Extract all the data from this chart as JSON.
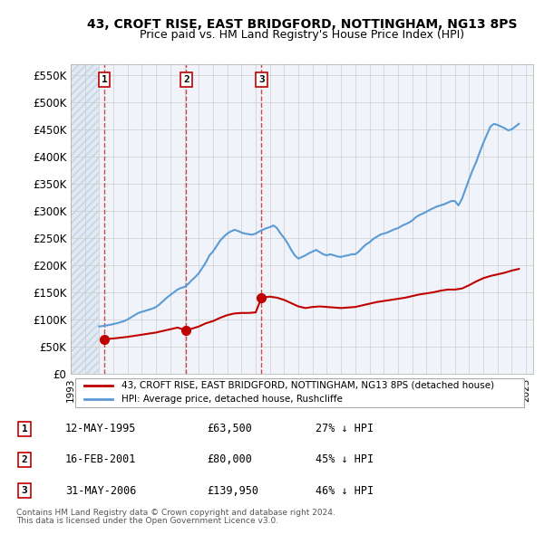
{
  "title": "43, CROFT RISE, EAST BRIDGFORD, NOTTINGHAM, NG13 8PS",
  "subtitle": "Price paid vs. HM Land Registry's House Price Index (HPI)",
  "ylabel_ticks": [
    "£0",
    "£50K",
    "£100K",
    "£150K",
    "£200K",
    "£250K",
    "£300K",
    "£350K",
    "£400K",
    "£450K",
    "£500K",
    "£550K"
  ],
  "ytick_values": [
    0,
    50000,
    100000,
    150000,
    200000,
    250000,
    300000,
    350000,
    400000,
    450000,
    500000,
    550000
  ],
  "xlim": [
    1993.0,
    2025.5
  ],
  "ylim": [
    0,
    570000
  ],
  "transactions": [
    {
      "num": 1,
      "date": "12-MAY-1995",
      "year": 1995.37,
      "price": 63500,
      "pct": "27%",
      "dir": "↓"
    },
    {
      "num": 2,
      "date": "16-FEB-2001",
      "year": 2001.12,
      "price": 80000,
      "pct": "45%",
      "dir": "↓"
    },
    {
      "num": 3,
      "date": "31-MAY-2006",
      "year": 2006.41,
      "price": 139950,
      "pct": "46%",
      "dir": "↓"
    }
  ],
  "hpi_line_color": "#5b9bd5",
  "price_line_color": "#c00000",
  "transaction_marker_color": "#c00000",
  "hatch_color": "#d0d8e8",
  "grid_color": "#cccccc",
  "bg_color": "#f0f4fa",
  "legend_entries": [
    "43, CROFT RISE, EAST BRIDGFORD, NOTTINGHAM, NG13 8PS (detached house)",
    "HPI: Average price, detached house, Rushcliffe"
  ],
  "footer1": "Contains HM Land Registry data © Crown copyright and database right 2024.",
  "footer2": "This data is licensed under the Open Government Licence v3.0.",
  "hpi_data_x": [
    1995.0,
    1995.25,
    1995.5,
    1995.75,
    1996.0,
    1996.25,
    1996.5,
    1996.75,
    1997.0,
    1997.25,
    1997.5,
    1997.75,
    1998.0,
    1998.25,
    1998.5,
    1998.75,
    1999.0,
    1999.25,
    1999.5,
    1999.75,
    2000.0,
    2000.25,
    2000.5,
    2000.75,
    2001.0,
    2001.25,
    2001.5,
    2001.75,
    2002.0,
    2002.25,
    2002.5,
    2002.75,
    2003.0,
    2003.25,
    2003.5,
    2003.75,
    2004.0,
    2004.25,
    2004.5,
    2004.75,
    2005.0,
    2005.25,
    2005.5,
    2005.75,
    2006.0,
    2006.25,
    2006.5,
    2006.75,
    2007.0,
    2007.25,
    2007.5,
    2007.75,
    2008.0,
    2008.25,
    2008.5,
    2008.75,
    2009.0,
    2009.25,
    2009.5,
    2009.75,
    2010.0,
    2010.25,
    2010.5,
    2010.75,
    2011.0,
    2011.25,
    2011.5,
    2011.75,
    2012.0,
    2012.25,
    2012.5,
    2012.75,
    2013.0,
    2013.25,
    2013.5,
    2013.75,
    2014.0,
    2014.25,
    2014.5,
    2014.75,
    2015.0,
    2015.25,
    2015.5,
    2015.75,
    2016.0,
    2016.25,
    2016.5,
    2016.75,
    2017.0,
    2017.25,
    2017.5,
    2017.75,
    2018.0,
    2018.25,
    2018.5,
    2018.75,
    2019.0,
    2019.25,
    2019.5,
    2019.75,
    2020.0,
    2020.25,
    2020.5,
    2020.75,
    2021.0,
    2021.25,
    2021.5,
    2021.75,
    2022.0,
    2022.25,
    2022.5,
    2022.75,
    2023.0,
    2023.25,
    2023.5,
    2023.75,
    2024.0,
    2024.25,
    2024.5
  ],
  "hpi_data_y": [
    87000,
    88000,
    89000,
    90000,
    91500,
    93000,
    95000,
    97000,
    100000,
    104000,
    108000,
    112000,
    114000,
    116000,
    118000,
    120000,
    123000,
    128000,
    134000,
    140000,
    145000,
    150000,
    155000,
    158000,
    160000,
    165000,
    172000,
    178000,
    185000,
    195000,
    205000,
    218000,
    225000,
    235000,
    245000,
    252000,
    258000,
    262000,
    265000,
    263000,
    260000,
    258000,
    257000,
    256000,
    258000,
    262000,
    265000,
    268000,
    270000,
    273000,
    268000,
    258000,
    250000,
    240000,
    228000,
    218000,
    212000,
    215000,
    218000,
    222000,
    225000,
    228000,
    224000,
    220000,
    218000,
    220000,
    218000,
    216000,
    215000,
    217000,
    218000,
    220000,
    220000,
    225000,
    232000,
    238000,
    242000,
    248000,
    252000,
    256000,
    258000,
    260000,
    263000,
    266000,
    268000,
    272000,
    275000,
    278000,
    282000,
    288000,
    292000,
    295000,
    298000,
    302000,
    305000,
    308000,
    310000,
    312000,
    315000,
    318000,
    318000,
    310000,
    322000,
    340000,
    358000,
    375000,
    390000,
    408000,
    425000,
    440000,
    455000,
    460000,
    458000,
    455000,
    452000,
    448000,
    450000,
    455000,
    460000
  ],
  "price_data_x": [
    1995.37,
    1995.5,
    1996.0,
    1996.5,
    1997.0,
    1997.5,
    1998.0,
    1998.5,
    1999.0,
    1999.5,
    2000.0,
    2000.5,
    2001.12,
    2001.5,
    2002.0,
    2002.5,
    2003.0,
    2003.5,
    2004.0,
    2004.5,
    2005.0,
    2005.5,
    2006.0,
    2006.41,
    2007.0,
    2007.5,
    2008.0,
    2008.5,
    2009.0,
    2009.5,
    2010.0,
    2010.5,
    2011.0,
    2011.5,
    2012.0,
    2012.5,
    2013.0,
    2013.5,
    2014.0,
    2014.5,
    2015.0,
    2015.5,
    2016.0,
    2016.5,
    2017.0,
    2017.5,
    2018.0,
    2018.5,
    2019.0,
    2019.5,
    2020.0,
    2020.5,
    2021.0,
    2021.5,
    2022.0,
    2022.5,
    2023.0,
    2023.5,
    2024.0,
    2024.5
  ],
  "price_data_y": [
    63500,
    64000,
    65000,
    66500,
    68000,
    70000,
    72000,
    74000,
    76000,
    79000,
    82000,
    85000,
    80000,
    83000,
    87000,
    93000,
    97000,
    103000,
    108000,
    111000,
    112000,
    112000,
    113000,
    139950,
    142000,
    140000,
    136000,
    130000,
    124000,
    121000,
    123000,
    124000,
    123000,
    122000,
    121000,
    122000,
    123000,
    126000,
    129000,
    132000,
    134000,
    136000,
    138000,
    140000,
    143000,
    146000,
    148000,
    150000,
    153000,
    155000,
    155000,
    157000,
    163000,
    170000,
    176000,
    180000,
    183000,
    186000,
    190000,
    193000
  ]
}
